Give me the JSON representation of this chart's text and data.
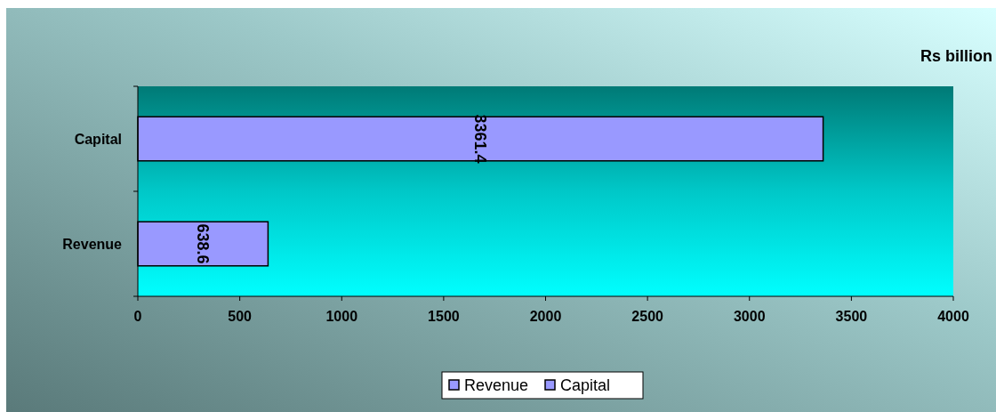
{
  "chart_data": {
    "type": "bar",
    "orientation": "horizontal",
    "categories": [
      "Capital",
      "Revenue"
    ],
    "series": [
      {
        "name": "Revenue",
        "color": "#9999ff",
        "values": [
          null,
          638.6
        ]
      },
      {
        "name": "Capital",
        "color": "#9999ff",
        "values": [
          3361.4,
          null
        ]
      }
    ],
    "xlim": [
      0,
      4000
    ],
    "xticks": [
      0,
      500,
      1000,
      1500,
      2000,
      2500,
      3000,
      3500,
      4000
    ],
    "data_labels": true,
    "legend": "bottom",
    "grid": false,
    "annotations": [
      "Rs  billion"
    ]
  }
}
